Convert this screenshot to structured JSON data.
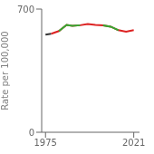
{
  "chart_data": {
    "type": "line",
    "ylabel": "Rate per 100,000",
    "xlim": [
      1973,
      2024
    ],
    "ylim": [
      0,
      700
    ],
    "xticks": [
      1975,
      2021
    ],
    "yticks": [
      0,
      700
    ],
    "series": [
      {
        "x": [
          1975,
          1978
        ],
        "values": [
          555,
          560
        ],
        "color": "#333333"
      },
      {
        "x": [
          1978,
          1982,
          1986,
          1989,
          1993,
          1997,
          2001,
          2005,
          2009,
          2013,
          2017,
          2021
        ],
        "values": [
          560,
          575,
          610,
          605,
          608,
          615,
          610,
          607,
          600,
          580,
          572,
          580
        ],
        "color": "#dd2222"
      },
      {
        "x": [
          1982,
          1986,
          1989,
          1993
        ],
        "values": [
          575,
          610,
          605,
          608
        ],
        "color": "#33aa33"
      },
      {
        "x": [
          2005,
          2009,
          2013
        ],
        "values": [
          607,
          600,
          580
        ],
        "color": "#33aa33"
      }
    ]
  }
}
